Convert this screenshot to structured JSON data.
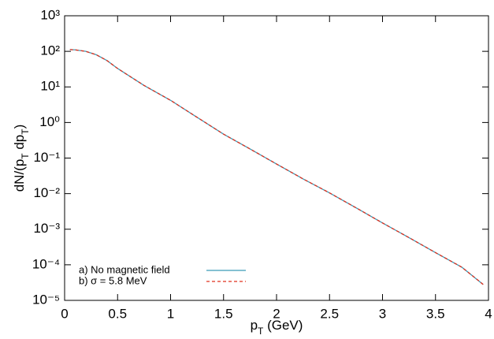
{
  "chart_data": {
    "type": "line",
    "xlabel": [
      {
        "text": "p"
      },
      {
        "text": "T",
        "sub": true
      },
      {
        "text": " (GeV)"
      }
    ],
    "ylabel": [
      {
        "text": "dN/(p"
      },
      {
        "text": "T",
        "sub": true
      },
      {
        "text": " dp"
      },
      {
        "text": "T",
        "sub": true
      },
      {
        "text": ")"
      }
    ],
    "x": [
      0.05,
      0.1,
      0.2,
      0.3,
      0.4,
      0.5,
      0.75,
      1,
      1.25,
      1.5,
      1.75,
      2,
      2.25,
      2.5,
      2.75,
      3,
      3.25,
      3.5,
      3.75,
      3.95
    ],
    "series": [
      {
        "name": "a) No magnetic field",
        "color": "#3b9cb8",
        "dash": false,
        "values": [
          112,
          110,
          100,
          80,
          55,
          33,
          11,
          4.2,
          1.4,
          0.47,
          0.18,
          0.068,
          0.026,
          0.0105,
          0.004,
          0.0015,
          0.00058,
          0.00022,
          8.5e-05,
          2.8e-05
        ]
      },
      {
        "name": "b) σ = 5.8 MeV",
        "color": "#e0301e",
        "dash": true,
        "values": [
          112,
          110,
          100,
          80,
          55,
          33,
          11,
          4.2,
          1.4,
          0.47,
          0.18,
          0.068,
          0.026,
          0.0105,
          0.004,
          0.0015,
          0.00058,
          0.00022,
          8.5e-05,
          2.8e-05
        ]
      }
    ],
    "xlim": [
      0,
      4
    ],
    "xticks": [
      0,
      0.5,
      1,
      1.5,
      2,
      2.5,
      3,
      3.5,
      4
    ],
    "ylim": [
      1e-05,
      1000
    ],
    "ylog": true,
    "yticks": [
      {
        "value": 1e-05,
        "label": "10⁻⁵"
      },
      {
        "value": 0.0001,
        "label": "10⁻⁴"
      },
      {
        "value": 0.001,
        "label": "10⁻³"
      },
      {
        "value": 0.01,
        "label": "10⁻²"
      },
      {
        "value": 0.1,
        "label": "10⁻¹"
      },
      {
        "value": 1,
        "label": "10⁰"
      },
      {
        "value": 10,
        "label": "10¹"
      },
      {
        "value": 100,
        "label": "10²"
      },
      {
        "value": 1000,
        "label": "10³"
      }
    ],
    "legend": "lower left"
  }
}
